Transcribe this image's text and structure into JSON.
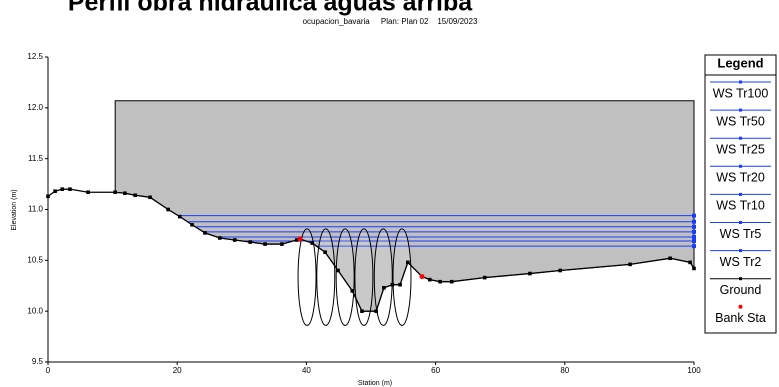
{
  "chart_data": {
    "type": "line",
    "title": "Perfil obra hidraulica aguas arriba",
    "subtitle": "ocupacion_bavaria     Plan: Plan 02    15/09/2023",
    "x_label": "Station (m)",
    "y_label": "Elevation (m)",
    "legend_title": "Legend",
    "xlim": [
      0,
      100
    ],
    "ylim": [
      9.5,
      12.5
    ],
    "xticks": [
      0,
      20,
      40,
      60,
      80,
      100
    ],
    "yticks": [
      9.5,
      {
        "value": 10,
        "label": "10.0"
      },
      10.5,
      {
        "value": 11,
        "label": "11.0"
      },
      11.5,
      {
        "value": 12,
        "label": "12.0"
      },
      12.5
    ],
    "obstruction": {
      "station_left": 10.4,
      "elevation_top": 12.07,
      "color": "#c0c0c0"
    },
    "openings": {
      "stations": [
        40.1,
        43.0,
        46.0,
        48.9,
        51.9,
        54.8
      ],
      "bottom": 9.86,
      "top": 10.81
    },
    "series": [
      {
        "name": "WS Tr100",
        "color": "#1a3cff",
        "values": [
          10.94
        ]
      },
      {
        "name": "WS Tr50",
        "color": "#1a3cff",
        "values": [
          10.88
        ]
      },
      {
        "name": "WS Tr25",
        "color": "#1a3cff",
        "values": [
          10.83
        ]
      },
      {
        "name": "WS Tr20",
        "color": "#1a3cff",
        "values": [
          10.78
        ]
      },
      {
        "name": "WS Tr10",
        "color": "#1a3cff",
        "values": [
          10.73
        ]
      },
      {
        "name": "WS Tr5",
        "color": "#1a3cff",
        "values": [
          10.69
        ]
      },
      {
        "name": "WS Tr2",
        "color": "#1a3cff",
        "values": [
          10.64
        ]
      },
      {
        "name": "Ground",
        "color": "#000000",
        "x": [
          0,
          1.1,
          2.2,
          3.4,
          6.2,
          10.4,
          11.9,
          13.5,
          15.8,
          18.6,
          20.4,
          22.3,
          24.3,
          26.6,
          28.9,
          31.3,
          33.6,
          36.2,
          38.5,
          39.0,
          40.9,
          42.9,
          44.9,
          47.1,
          48.6,
          50.8,
          52.0,
          53.3,
          54.5,
          55.7,
          57.9,
          59.1,
          60.7,
          62.5,
          67.6,
          74.6,
          79.3,
          90.1,
          96.3,
          99.4,
          100
        ],
        "values": [
          11.13,
          11.18,
          11.2,
          11.2,
          11.17,
          11.17,
          11.16,
          11.14,
          11.12,
          11.0,
          10.93,
          10.85,
          10.77,
          10.72,
          10.7,
          10.68,
          10.66,
          10.66,
          10.7,
          10.71,
          10.67,
          10.58,
          10.4,
          10.2,
          10.0,
          10.0,
          10.23,
          10.26,
          10.26,
          10.48,
          10.34,
          10.31,
          10.29,
          10.29,
          10.33,
          10.37,
          10.4,
          10.46,
          10.52,
          10.48,
          10.42
        ]
      },
      {
        "name": "Bank Sta",
        "color": "#ff0000",
        "x": [
          39.0,
          57.9
        ],
        "values": [
          10.71,
          10.34
        ]
      }
    ]
  }
}
